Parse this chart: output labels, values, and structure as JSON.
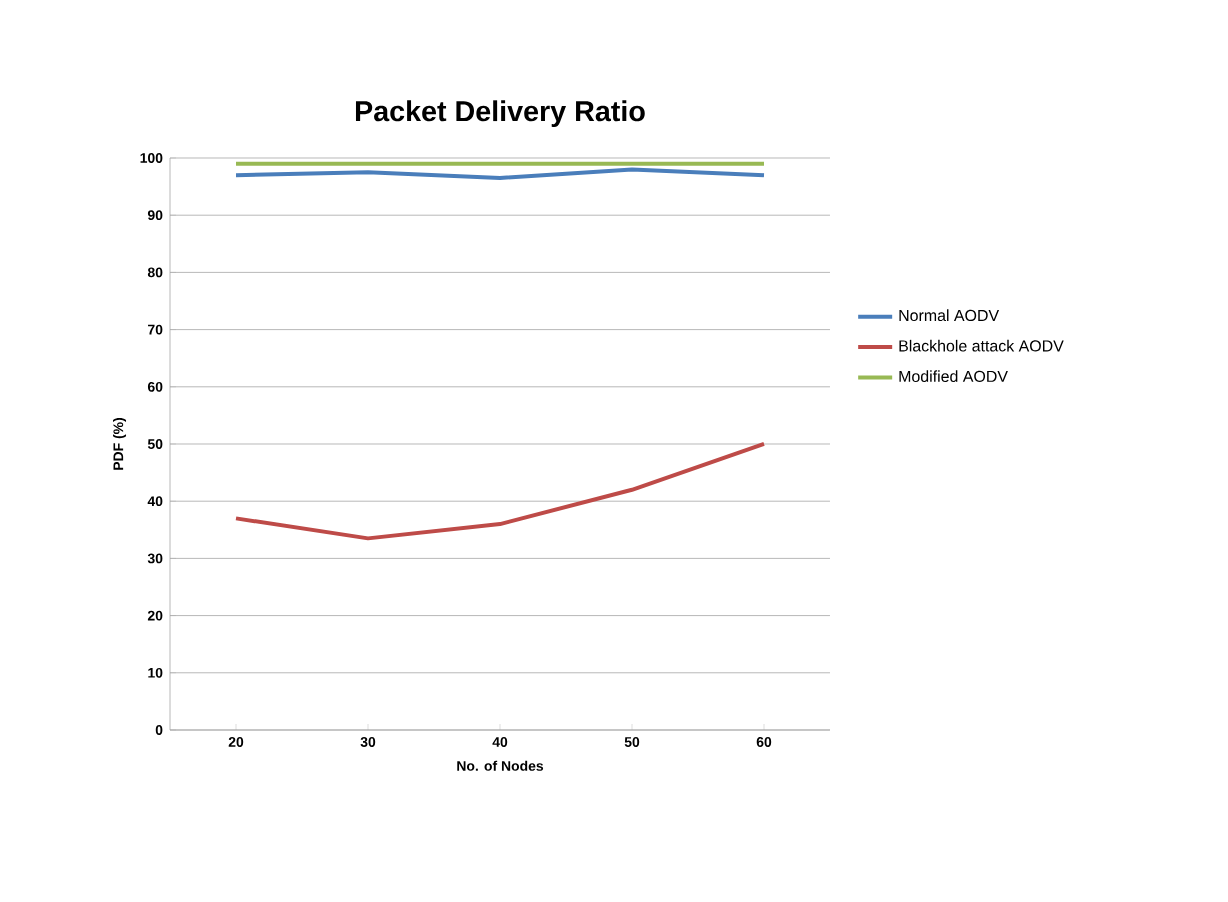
{
  "chart_data": {
    "type": "line",
    "title": "Packet Delivery Ratio",
    "xlabel": "No. of Nodes",
    "ylabel": "PDF (%)",
    "categories": [
      "20",
      "30",
      "40",
      "50",
      "60"
    ],
    "series": [
      {
        "name": "Normal AODV",
        "color": "#4a7ebb",
        "values": [
          97,
          97.5,
          96.5,
          98,
          97
        ]
      },
      {
        "name": "Blackhole attack  AODV",
        "color": "#be4b48",
        "values": [
          37,
          33.5,
          36,
          42,
          50
        ]
      },
      {
        "name": "Modified AODV",
        "color": "#98b954",
        "values": [
          99,
          99,
          99,
          99,
          99
        ]
      }
    ],
    "ylim": [
      0,
      100
    ],
    "yticks": [
      0,
      10,
      20,
      30,
      40,
      50,
      60,
      70,
      80,
      90,
      100
    ],
    "grid": "y",
    "legend": "right",
    "marker": "none",
    "line_style": "solid"
  }
}
